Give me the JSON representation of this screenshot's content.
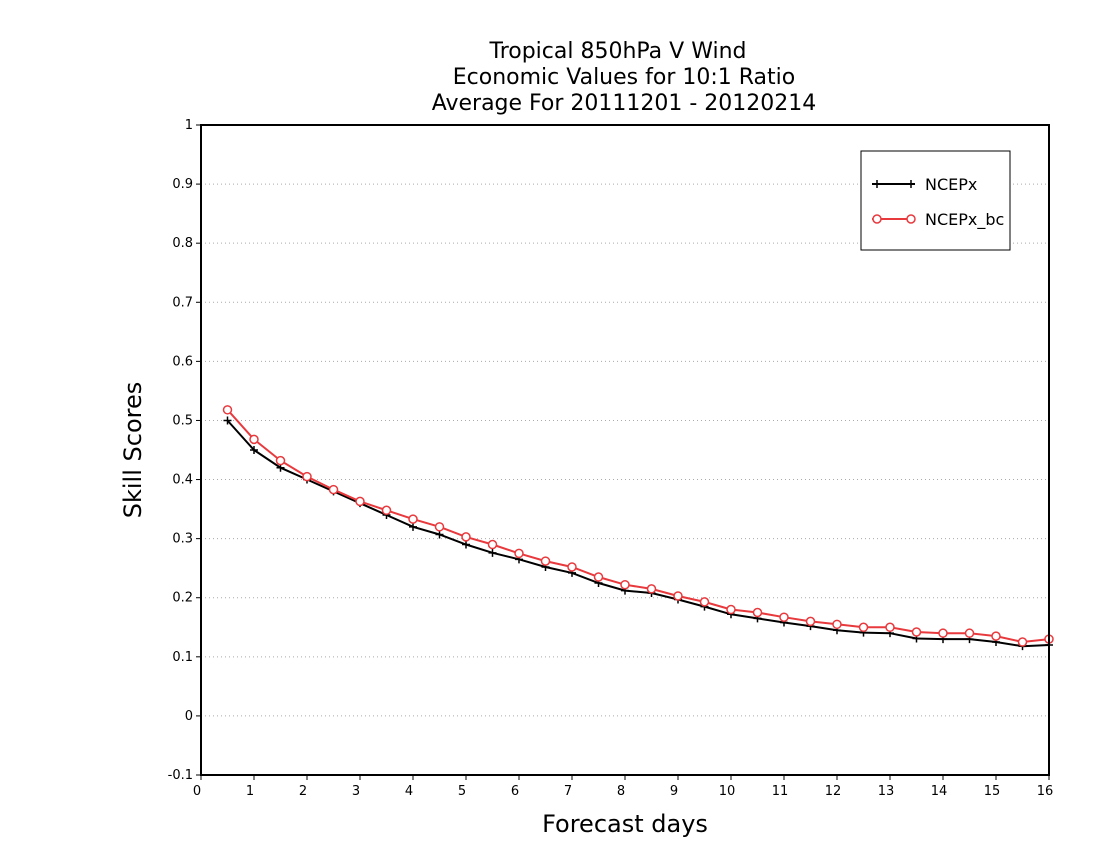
{
  "chart_data": {
    "type": "line",
    "title_lines": [
      "Tropical 850hPa V Wind",
      "Economic Values for 10:1 Ratio",
      "Average For 20111201 - 20120214"
    ],
    "xlabel": "Forecast days",
    "ylabel": "Skill Scores",
    "xlim": [
      0,
      16
    ],
    "ylim": [
      -0.1,
      1
    ],
    "xticks": [
      0,
      1,
      2,
      3,
      4,
      5,
      6,
      7,
      8,
      9,
      10,
      11,
      12,
      13,
      14,
      15,
      16
    ],
    "xtick_labels": [
      "0",
      "1",
      "2",
      "3",
      "4",
      "5",
      "6",
      "7",
      "8",
      "9",
      "10",
      "11",
      "12",
      "13",
      "14",
      "15",
      "16"
    ],
    "yticks": [
      -0.1,
      0,
      0.1,
      0.2,
      0.3,
      0.4,
      0.5,
      0.6,
      0.7,
      0.8,
      0.9,
      1
    ],
    "ytick_labels": [
      "-0.1",
      "0",
      "0.1",
      "0.2",
      "0.3",
      "0.4",
      "0.5",
      "0.6",
      "0.7",
      "0.8",
      "0.9",
      "1"
    ],
    "grid": "horizontal dotted",
    "legend_position": "top-right",
    "x": [
      0.5,
      1,
      1.5,
      2,
      2.5,
      3,
      3.5,
      4,
      4.5,
      5,
      5.5,
      6,
      6.5,
      7,
      7.5,
      8,
      8.5,
      9,
      9.5,
      10,
      10.5,
      11,
      11.5,
      12,
      12.5,
      13,
      13.5,
      14,
      14.5,
      15,
      15.5,
      16
    ],
    "series": [
      {
        "name": "NCEPx",
        "color": "#000000",
        "marker": "plus",
        "values": [
          0.5,
          0.45,
          0.42,
          0.4,
          0.38,
          0.36,
          0.34,
          0.32,
          0.307,
          0.29,
          0.276,
          0.265,
          0.252,
          0.242,
          0.225,
          0.212,
          0.208,
          0.197,
          0.185,
          0.172,
          0.165,
          0.158,
          0.152,
          0.145,
          0.141,
          0.14,
          0.131,
          0.13,
          0.13,
          0.125,
          0.118,
          0.12
        ]
      },
      {
        "name": "NCEPx_bc",
        "color": "#e8393d",
        "marker": "circle",
        "values": [
          0.518,
          0.468,
          0.432,
          0.405,
          0.383,
          0.363,
          0.348,
          0.333,
          0.32,
          0.303,
          0.29,
          0.275,
          0.262,
          0.252,
          0.235,
          0.222,
          0.215,
          0.203,
          0.193,
          0.18,
          0.175,
          0.167,
          0.16,
          0.155,
          0.15,
          0.15,
          0.142,
          0.14,
          0.14,
          0.135,
          0.125,
          0.13
        ]
      }
    ]
  }
}
